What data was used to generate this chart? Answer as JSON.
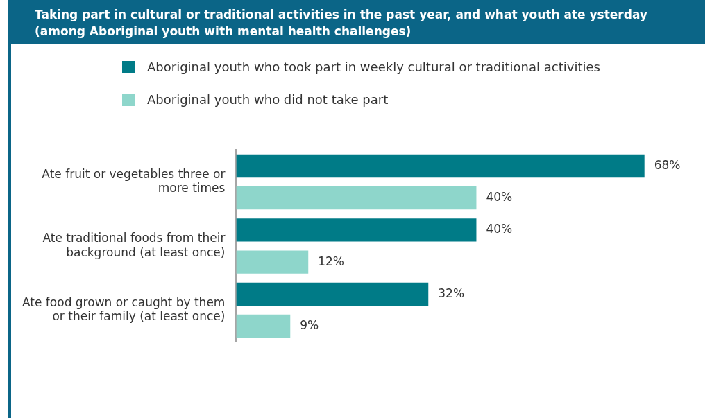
{
  "chart_data": {
    "type": "bar",
    "orientation": "horizontal",
    "title": "Taking part in cultural or traditional activities in the past year, and what youth ate ysterday\n(among Aboriginal youth with mental health challenges)",
    "categories": [
      "Ate fruit or vegetables three or more times",
      "Ate traditional foods from their background (at least once)",
      "Ate food grown or caught by them or their family (at least once)"
    ],
    "series": [
      {
        "name": "Aboriginal youth who took part in weekly cultural or traditional activities",
        "color": "#007b87",
        "values": [
          68,
          40,
          32
        ],
        "value_labels": [
          "68%",
          "40%",
          "32%"
        ]
      },
      {
        "name": "Aboriginal youth who did not take part",
        "color": "#8ed6cb",
        "values": [
          40,
          12,
          9
        ],
        "value_labels": [
          "40%",
          "12%",
          "9%"
        ]
      }
    ],
    "legend": "top"
  }
}
